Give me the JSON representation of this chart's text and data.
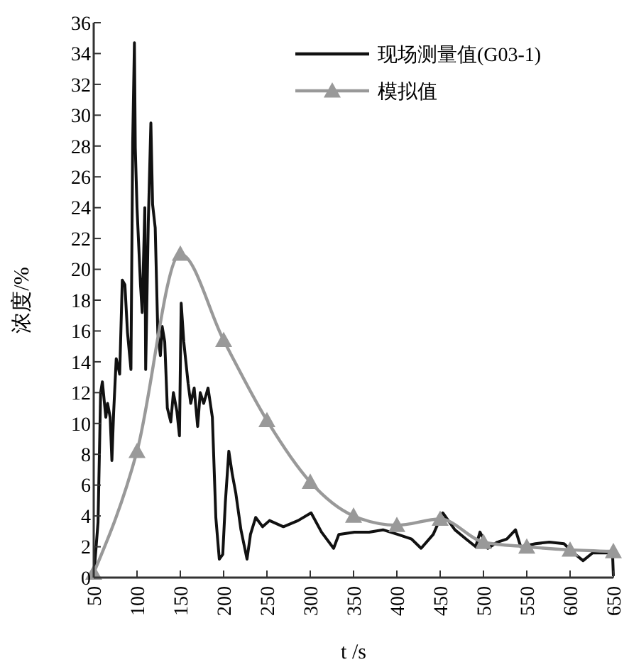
{
  "chart_data": {
    "type": "line",
    "xlabel": "t /s",
    "ylabel": "浓度/%",
    "xlim": [
      50,
      650
    ],
    "xticks": [
      50,
      100,
      150,
      200,
      250,
      300,
      350,
      400,
      450,
      500,
      550,
      600,
      650
    ],
    "ylim": [
      0,
      36
    ],
    "yticks": [
      0,
      2,
      4,
      6,
      8,
      10,
      12,
      14,
      16,
      18,
      20,
      22,
      24,
      26,
      28,
      30,
      32,
      34,
      36
    ],
    "grid": false,
    "legend": "top right",
    "series": [
      {
        "name": "现场测量值(G03-1)",
        "color": "#111111",
        "marker": "none",
        "x": [
          50,
          55,
          58,
          60,
          64,
          66,
          69,
          71,
          73,
          76,
          80,
          83,
          86,
          89,
          93,
          95,
          97,
          98,
          100,
          104,
          106,
          109,
          110,
          113,
          116,
          118,
          121,
          124,
          127,
          129,
          132,
          135,
          139,
          142,
          146,
          149,
          151,
          154,
          159,
          162,
          166,
          170,
          173,
          177,
          182,
          187,
          191,
          195,
          199,
          202,
          206,
          210,
          214,
          220,
          227,
          231,
          237,
          245,
          253,
          269,
          286,
          301,
          313,
          327,
          333,
          351,
          368,
          384,
          401,
          417,
          428,
          442,
          453,
          467,
          480,
          491,
          496,
          505,
          516,
          527,
          537,
          543,
          560,
          576,
          593,
          604,
          615,
          626,
          642,
          649,
          650
        ],
        "values": [
          0,
          3.6,
          12,
          12.7,
          10.4,
          11.3,
          10.4,
          7.6,
          10.7,
          14.2,
          13.2,
          19.3,
          19,
          15.9,
          13.5,
          28.2,
          34.7,
          27.9,
          24,
          19,
          17.2,
          24,
          13.5,
          23,
          29.5,
          24.2,
          22.7,
          15.9,
          14.4,
          16.3,
          15.3,
          11,
          10.1,
          12,
          10.8,
          9.2,
          17.8,
          15.3,
          12.6,
          11.3,
          12.3,
          9.8,
          12,
          11.3,
          12.3,
          10.4,
          3.9,
          1.2,
          1.5,
          4.9,
          8.2,
          6.7,
          5.5,
          3.1,
          1.2,
          2.8,
          3.9,
          3.3,
          3.7,
          3.3,
          3.7,
          4.2,
          2.95,
          1.9,
          2.8,
          2.95,
          2.95,
          3.1,
          2.8,
          2.5,
          1.9,
          2.8,
          4.2,
          3.1,
          2.5,
          2,
          2.95,
          1.9,
          2.3,
          2.5,
          3.1,
          2,
          2.2,
          2.3,
          2.2,
          1.6,
          1.1,
          1.6,
          1.6,
          1.6,
          0.1
        ]
      },
      {
        "name": "模拟值",
        "color": "#999999",
        "marker": "triangle",
        "x": [
          50,
          100,
          150,
          200,
          250,
          300,
          350,
          400,
          450,
          500,
          550,
          600,
          650
        ],
        "values": [
          0.3,
          8.2,
          21,
          15.4,
          10.2,
          6.2,
          4,
          3.4,
          3.8,
          2.3,
          2,
          1.8,
          1.7
        ]
      }
    ]
  }
}
